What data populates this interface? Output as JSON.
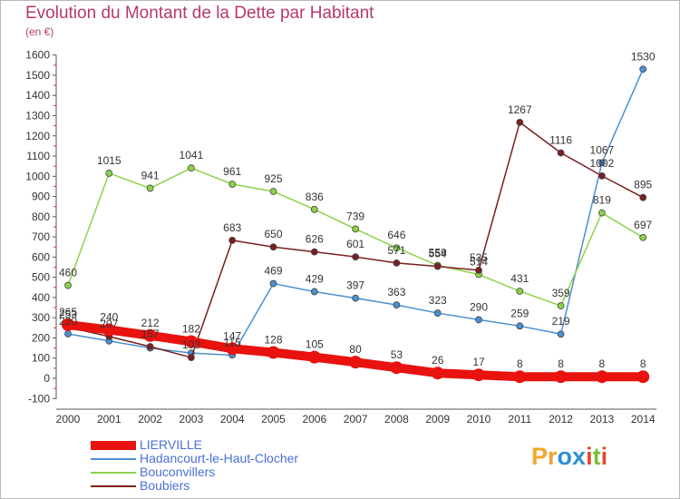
{
  "title": "Evolution du Montant de la Dette par Habitant",
  "subtitle": "(en €)",
  "logo": {
    "text": "Proxiti",
    "letters": [
      "P",
      "r",
      "o",
      "x",
      "i",
      "t",
      "i"
    ],
    "colors": [
      "#f4a52b",
      "#f2a132",
      "#2e8fd6",
      "#2e8fd6",
      "#e04a2a",
      "#7bbf3a",
      "#e04a2a"
    ]
  },
  "chart_data": {
    "type": "line",
    "x": [
      2000,
      2001,
      2002,
      2003,
      2004,
      2005,
      2006,
      2007,
      2008,
      2009,
      2010,
      2011,
      2012,
      2013,
      2014
    ],
    "ylim": [
      -100,
      1600
    ],
    "yticks": [
      -100,
      0,
      100,
      200,
      300,
      400,
      500,
      600,
      700,
      800,
      900,
      1000,
      1100,
      1200,
      1300,
      1400,
      1500,
      1600
    ],
    "grid": false,
    "legend_position": "bottom-left",
    "series": [
      {
        "name": "LIERVILLE",
        "color": "#e8120f",
        "values": [
          265,
          240,
          212,
          182,
          147,
          128,
          105,
          80,
          53,
          26,
          17,
          8,
          8,
          8,
          8
        ],
        "labels": [
          "265",
          "240",
          "212",
          "182",
          "147",
          "128",
          "105",
          "80",
          "53",
          "26",
          "17",
          "8",
          "8",
          "8",
          "8"
        ]
      },
      {
        "name": "Hadancourt-le-Haut-Clocher",
        "color": "#4a8fd0",
        "values": [
          220,
          185,
          150,
          125,
          115,
          469,
          429,
          397,
          363,
          323,
          290,
          259,
          219,
          1067,
          1530
        ],
        "labels": [
          "220",
          "",
          "",
          "",
          "115",
          "469",
          "429",
          "397",
          "363",
          "323",
          "290",
          "259",
          "219",
          "1067",
          "1530"
        ]
      },
      {
        "name": "Bouconvillers",
        "color": "#8ed24a",
        "values": [
          460,
          1015,
          941,
          1041,
          961,
          925,
          836,
          739,
          646,
          559,
          514,
          431,
          359,
          819,
          697
        ],
        "labels": [
          "460",
          "1015",
          "941",
          "1041",
          "961",
          "925",
          "836",
          "739",
          "646",
          "559",
          "514",
          "431",
          "359",
          "819",
          "697"
        ]
      },
      {
        "name": "Boubiers",
        "color": "#7a1f1f",
        "values": [
          253,
          207,
          157,
          103,
          683,
          650,
          626,
          601,
          571,
          554,
          535,
          1267,
          1116,
          1002,
          895
        ],
        "labels": [
          "253",
          "207",
          "157",
          "103",
          "683",
          "650",
          "626",
          "601",
          "571",
          "554",
          "535",
          "1267",
          "1116",
          "1002",
          "895"
        ]
      }
    ]
  }
}
